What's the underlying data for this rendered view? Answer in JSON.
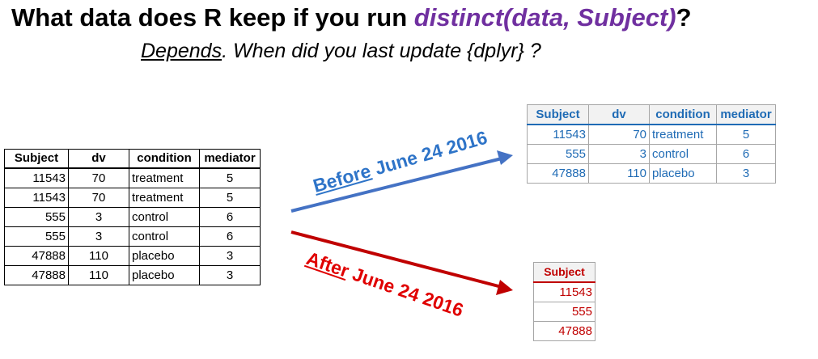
{
  "header": {
    "title_prefix": "What data does R keep if you run ",
    "title_code": "distinct(data, Subject)",
    "title_suffix": "?",
    "subtitle_underlined": "Depends",
    "subtitle_rest": ". When did you last update {dplyr} ?"
  },
  "original_table": {
    "columns": [
      "Subject",
      "dv",
      "condition",
      "mediator"
    ],
    "rows": [
      [
        "11543",
        "70",
        "treatment",
        "5"
      ],
      [
        "11543",
        "70",
        "treatment",
        "5"
      ],
      [
        "555",
        "3",
        "control",
        "6"
      ],
      [
        "555",
        "3",
        "control",
        "6"
      ],
      [
        "47888",
        "110",
        "placebo",
        "3"
      ],
      [
        "47888",
        "110",
        "placebo",
        "3"
      ]
    ]
  },
  "before": {
    "label_underlined": "Before",
    "label_rest": " June 24 2016",
    "color": "#4472c4",
    "columns": [
      "Subject",
      "dv",
      "condition",
      "mediator"
    ],
    "rows": [
      [
        "11543",
        "70",
        "treatment",
        "5"
      ],
      [
        "555",
        "3",
        "control",
        "6"
      ],
      [
        "47888",
        "110",
        "placebo",
        "3"
      ]
    ]
  },
  "after": {
    "label_underlined": "After",
    "label_rest": " June 24 2016",
    "color": "#c00000",
    "columns": [
      "Subject"
    ],
    "rows": [
      [
        "11543"
      ],
      [
        "555"
      ],
      [
        "47888"
      ]
    ]
  }
}
